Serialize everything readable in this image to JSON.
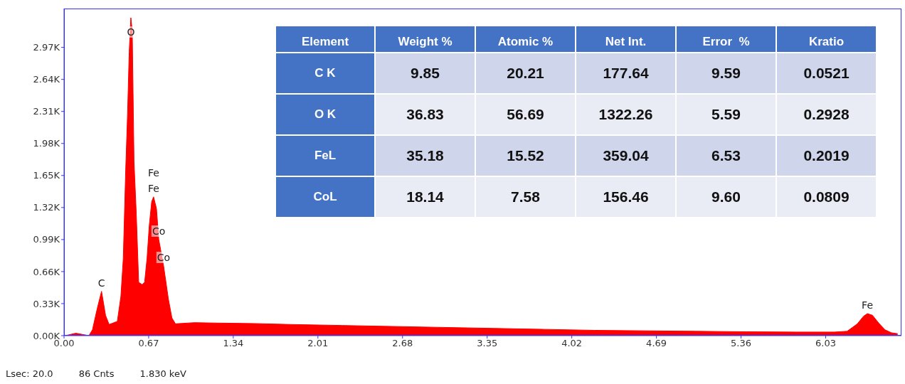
{
  "chart_data": [
    {
      "type": "area",
      "x": [
        0.01,
        0.094,
        0.197,
        0.225,
        0.263,
        0.297,
        0.329,
        0.357,
        0.422,
        0.45,
        0.469,
        0.488,
        0.503,
        0.516,
        0.529,
        0.54,
        0.554,
        0.572,
        0.591,
        0.619,
        0.638,
        0.657,
        0.675,
        0.694,
        0.709,
        0.732,
        0.75,
        0.788,
        0.826,
        0.854,
        0.882,
        1.032,
        1.2,
        1.5,
        1.8,
        2.2,
        2.6,
        3.0,
        3.4,
        3.8,
        4.2,
        4.6,
        5.0,
        5.4,
        5.8,
        6.1,
        6.2,
        6.28,
        6.33,
        6.36,
        6.4,
        6.45,
        6.5,
        6.55,
        6.6
      ],
      "values": [
        0,
        25,
        0,
        60,
        280,
        457,
        208,
        115,
        147,
        403,
        794,
        1700,
        2285,
        2920,
        3275,
        3140,
        1796,
        1259,
        550,
        525,
        550,
        794,
        1137,
        1381,
        1430,
        1308,
        990,
        721,
        379,
        183,
        122,
        134,
        130,
        125,
        115,
        105,
        95,
        85,
        75,
        65,
        55,
        50,
        45,
        40,
        37,
        37,
        45,
        120,
        200,
        227,
        210,
        130,
        60,
        30,
        20
      ],
      "color": "#ff0000",
      "xlim": [
        0,
        6.63
      ],
      "xticks": [
        {
          "value": 0,
          "label": "0.00"
        },
        0.67,
        1.34,
        2.01,
        2.68,
        3.35,
        4.02,
        4.69,
        5.36,
        6.03
      ],
      "ylim": [
        0,
        3370
      ],
      "yticks": [
        {
          "value": 0,
          "label": "0.00K"
        },
        {
          "value": 330,
          "label": "0.33K"
        },
        {
          "value": 660,
          "label": "0.66K"
        },
        {
          "value": 990,
          "label": "0.99K"
        },
        {
          "value": 1320,
          "label": "1.32K"
        },
        {
          "value": 1650,
          "label": "1.65K"
        },
        {
          "value": 1980,
          "label": "1.98K"
        },
        {
          "value": 2310,
          "label": "2.31K"
        },
        {
          "value": 2640,
          "label": "2.64K"
        },
        {
          "value": 2970,
          "label": "2.97K"
        }
      ],
      "annotations": [
        {
          "text": "C",
          "x": 0.297,
          "y": 457
        },
        {
          "text": "O",
          "x": 0.529,
          "y": 3275
        },
        {
          "text": "Fe",
          "x": 0.709,
          "y": 1430
        },
        {
          "text": "Fe",
          "x": 0.709,
          "y": 1430
        },
        {
          "text": "Co",
          "x": 0.75,
          "y": 990
        },
        {
          "text": "Co",
          "x": 0.788,
          "y": 721
        },
        {
          "text": "Fe",
          "x": 6.36,
          "y": 227
        },
        "Lsec: 20.0",
        "86 Cnts",
        "1.830 keV"
      ]
    },
    {
      "type": "other",
      "ylabel": "Element",
      "categories": [
        "Weight %",
        "Atomic %",
        "Net Int.",
        "Error  %",
        "Kratio"
      ],
      "y_categories": [
        "C K",
        "O K",
        "FeL",
        "CoL"
      ],
      "annotations": [
        "9.85",
        "20.21",
        "177.64",
        "9.59",
        "0.0521",
        "36.83",
        "56.69",
        "1322.26",
        "5.59",
        "0.2928",
        "35.18",
        "15.52",
        "359.04",
        "6.53",
        "0.2019",
        "18.14",
        "7.58",
        "156.46",
        "9.60",
        "0.0809"
      ]
    }
  ]
}
